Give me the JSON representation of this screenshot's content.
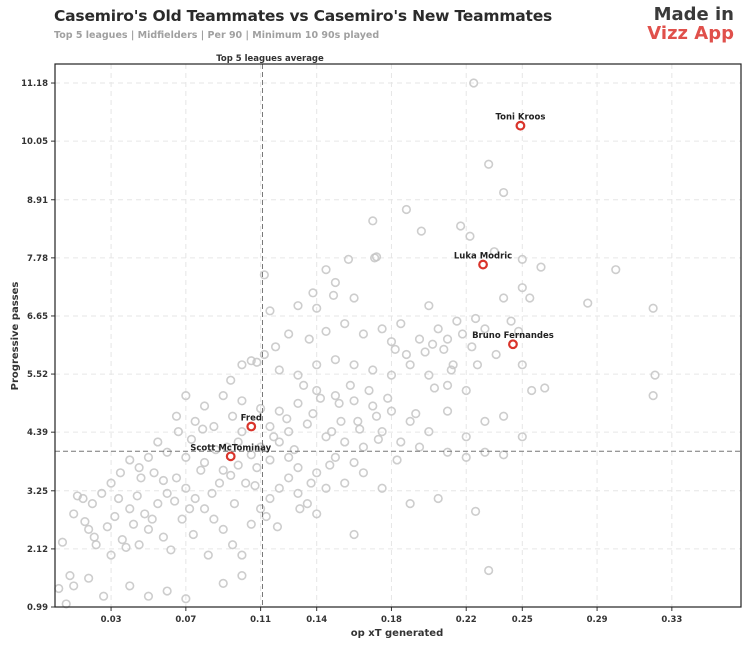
{
  "header": {
    "title": "Casemiro's Old Teammates vs Casemiro's New Teammates",
    "subtitle": "Top 5 leagues | Midfielders | Per 90 | Minimum 10 90s played"
  },
  "brand": {
    "line1": "Made in",
    "line2": "Vizz App",
    "line2_color": "#e0504b"
  },
  "chart_data": {
    "type": "scatter",
    "xlabel": "op xT generated",
    "ylabel": "Progressive passes",
    "xlim": [
      0.0,
      0.367
    ],
    "ylim": [
      0.99,
      11.55
    ],
    "x_ticks": [
      0.03,
      0.07,
      0.11,
      0.14,
      0.18,
      0.22,
      0.25,
      0.29,
      0.33
    ],
    "y_ticks": [
      0.99,
      2.12,
      3.25,
      4.39,
      5.52,
      6.65,
      7.78,
      8.91,
      10.05,
      11.18
    ],
    "grid": true,
    "reference_lines": {
      "x": 0.111,
      "y": 4.02,
      "x_label": "Top 5 leagues average"
    },
    "highlight_color": "#d9342b",
    "background_color": "#c4c4c4",
    "highlighted": [
      {
        "name": "Toni Kroos",
        "x": 0.249,
        "y": 10.35
      },
      {
        "name": "Luka Modric",
        "x": 0.229,
        "y": 7.65
      },
      {
        "name": "Bruno Fernandes",
        "x": 0.245,
        "y": 6.1
      },
      {
        "name": "Fred",
        "x": 0.105,
        "y": 4.5
      },
      {
        "name": "Scott McTominay",
        "x": 0.094,
        "y": 3.92
      }
    ],
    "others": [
      [
        0.224,
        11.18
      ],
      [
        0.232,
        9.6
      ],
      [
        0.24,
        9.05
      ],
      [
        0.17,
        8.5
      ],
      [
        0.188,
        8.72
      ],
      [
        0.196,
        8.3
      ],
      [
        0.217,
        8.4
      ],
      [
        0.222,
        8.2
      ],
      [
        0.235,
        7.9
      ],
      [
        0.25,
        7.75
      ],
      [
        0.26,
        7.6
      ],
      [
        0.3,
        7.55
      ],
      [
        0.32,
        6.8
      ],
      [
        0.285,
        6.9
      ],
      [
        0.24,
        7.0
      ],
      [
        0.254,
        7.0
      ],
      [
        0.25,
        7.2
      ],
      [
        0.171,
        7.78
      ],
      [
        0.172,
        7.8
      ],
      [
        0.157,
        7.75
      ],
      [
        0.145,
        7.55
      ],
      [
        0.15,
        7.3
      ],
      [
        0.138,
        7.1
      ],
      [
        0.149,
        7.05
      ],
      [
        0.16,
        7.0
      ],
      [
        0.14,
        6.8
      ],
      [
        0.13,
        6.85
      ],
      [
        0.115,
        6.75
      ],
      [
        0.2,
        6.85
      ],
      [
        0.215,
        6.55
      ],
      [
        0.225,
        6.6
      ],
      [
        0.23,
        6.4
      ],
      [
        0.205,
        6.4
      ],
      [
        0.195,
        6.2
      ],
      [
        0.21,
        6.2
      ],
      [
        0.18,
        6.15
      ],
      [
        0.165,
        6.3
      ],
      [
        0.175,
        6.4
      ],
      [
        0.185,
        6.5
      ],
      [
        0.155,
        6.5
      ],
      [
        0.145,
        6.35
      ],
      [
        0.136,
        6.2
      ],
      [
        0.125,
        6.3
      ],
      [
        0.118,
        6.05
      ],
      [
        0.112,
        5.9
      ],
      [
        0.105,
        5.78
      ],
      [
        0.108,
        5.75
      ],
      [
        0.1,
        5.7
      ],
      [
        0.094,
        5.4
      ],
      [
        0.12,
        5.6
      ],
      [
        0.13,
        5.5
      ],
      [
        0.14,
        5.7
      ],
      [
        0.15,
        5.8
      ],
      [
        0.16,
        5.7
      ],
      [
        0.17,
        5.6
      ],
      [
        0.18,
        5.5
      ],
      [
        0.19,
        5.7
      ],
      [
        0.2,
        5.5
      ],
      [
        0.21,
        5.3
      ],
      [
        0.22,
        5.2
      ],
      [
        0.236,
        5.9
      ],
      [
        0.25,
        5.7
      ],
      [
        0.255,
        5.2
      ],
      [
        0.262,
        5.25
      ],
      [
        0.32,
        5.1
      ],
      [
        0.321,
        5.5
      ],
      [
        0.25,
        4.3
      ],
      [
        0.24,
        4.7
      ],
      [
        0.23,
        4.6
      ],
      [
        0.22,
        4.3
      ],
      [
        0.21,
        4.8
      ],
      [
        0.2,
        4.4
      ],
      [
        0.19,
        4.6
      ],
      [
        0.18,
        4.8
      ],
      [
        0.17,
        4.9
      ],
      [
        0.16,
        5.0
      ],
      [
        0.15,
        5.1
      ],
      [
        0.14,
        5.2
      ],
      [
        0.13,
        4.95
      ],
      [
        0.12,
        4.8
      ],
      [
        0.11,
        4.85
      ],
      [
        0.1,
        5.0
      ],
      [
        0.09,
        5.1
      ],
      [
        0.08,
        4.9
      ],
      [
        0.07,
        5.1
      ],
      [
        0.065,
        4.7
      ],
      [
        0.075,
        4.6
      ],
      [
        0.085,
        4.5
      ],
      [
        0.095,
        4.7
      ],
      [
        0.1,
        4.4
      ],
      [
        0.115,
        4.5
      ],
      [
        0.125,
        4.4
      ],
      [
        0.135,
        4.55
      ],
      [
        0.145,
        4.3
      ],
      [
        0.155,
        4.2
      ],
      [
        0.165,
        4.1
      ],
      [
        0.175,
        4.4
      ],
      [
        0.185,
        4.2
      ],
      [
        0.195,
        4.1
      ],
      [
        0.21,
        4.0
      ],
      [
        0.23,
        4.0
      ],
      [
        0.22,
        3.9
      ],
      [
        0.24,
        3.95
      ],
      [
        0.16,
        3.8
      ],
      [
        0.15,
        3.9
      ],
      [
        0.14,
        3.6
      ],
      [
        0.13,
        3.7
      ],
      [
        0.125,
        3.9
      ],
      [
        0.115,
        3.85
      ],
      [
        0.105,
        3.95
      ],
      [
        0.098,
        3.75
      ],
      [
        0.09,
        3.65
      ],
      [
        0.08,
        3.8
      ],
      [
        0.07,
        3.9
      ],
      [
        0.06,
        4.0
      ],
      [
        0.055,
        4.2
      ],
      [
        0.05,
        3.9
      ],
      [
        0.045,
        3.7
      ],
      [
        0.04,
        3.85
      ],
      [
        0.035,
        3.6
      ],
      [
        0.03,
        3.4
      ],
      [
        0.025,
        3.2
      ],
      [
        0.02,
        3.0
      ],
      [
        0.015,
        3.1
      ],
      [
        0.01,
        2.8
      ],
      [
        0.018,
        2.5
      ],
      [
        0.022,
        2.2
      ],
      [
        0.03,
        2.0
      ],
      [
        0.036,
        2.3
      ],
      [
        0.042,
        2.6
      ],
      [
        0.048,
        2.8
      ],
      [
        0.055,
        3.0
      ],
      [
        0.06,
        3.2
      ],
      [
        0.065,
        3.5
      ],
      [
        0.07,
        3.3
      ],
      [
        0.075,
        3.1
      ],
      [
        0.08,
        2.9
      ],
      [
        0.085,
        2.7
      ],
      [
        0.09,
        2.5
      ],
      [
        0.095,
        2.2
      ],
      [
        0.1,
        2.0
      ],
      [
        0.105,
        2.6
      ],
      [
        0.11,
        2.9
      ],
      [
        0.115,
        3.1
      ],
      [
        0.12,
        3.3
      ],
      [
        0.125,
        3.5
      ],
      [
        0.13,
        3.2
      ],
      [
        0.135,
        3.0
      ],
      [
        0.14,
        2.8
      ],
      [
        0.145,
        3.3
      ],
      [
        0.155,
        3.4
      ],
      [
        0.165,
        3.6
      ],
      [
        0.175,
        3.3
      ],
      [
        0.19,
        3.0
      ],
      [
        0.205,
        3.1
      ],
      [
        0.225,
        2.85
      ],
      [
        0.232,
        1.7
      ],
      [
        0.16,
        2.4
      ],
      [
        0.01,
        1.4
      ],
      [
        0.018,
        1.55
      ],
      [
        0.008,
        1.6
      ],
      [
        0.004,
        2.25
      ],
      [
        0.002,
        1.35
      ],
      [
        0.006,
        1.05
      ],
      [
        0.026,
        1.2
      ],
      [
        0.04,
        1.4
      ],
      [
        0.05,
        1.2
      ],
      [
        0.06,
        1.3
      ],
      [
        0.07,
        1.15
      ],
      [
        0.09,
        1.45
      ],
      [
        0.1,
        1.6
      ],
      [
        0.04,
        2.9
      ],
      [
        0.045,
        2.2
      ],
      [
        0.05,
        2.5
      ],
      [
        0.062,
        2.1
      ],
      [
        0.068,
        2.7
      ],
      [
        0.074,
        2.4
      ],
      [
        0.082,
        2.0
      ],
      [
        0.088,
        3.4
      ],
      [
        0.096,
        3.0
      ],
      [
        0.102,
        3.4
      ],
      [
        0.108,
        3.7
      ],
      [
        0.112,
        7.45
      ],
      [
        0.12,
        4.2
      ],
      [
        0.128,
        4.05
      ],
      [
        0.133,
        5.3
      ],
      [
        0.138,
        4.75
      ],
      [
        0.142,
        5.05
      ],
      [
        0.148,
        4.4
      ],
      [
        0.152,
        4.95
      ],
      [
        0.158,
        5.3
      ],
      [
        0.162,
        4.6
      ],
      [
        0.168,
        5.2
      ],
      [
        0.172,
        4.7
      ],
      [
        0.178,
        5.05
      ],
      [
        0.182,
        6.0
      ],
      [
        0.188,
        5.9
      ],
      [
        0.198,
        5.95
      ],
      [
        0.202,
        6.1
      ],
      [
        0.208,
        6.0
      ],
      [
        0.212,
        5.6
      ],
      [
        0.218,
        6.3
      ],
      [
        0.226,
        5.7
      ],
      [
        0.053,
        3.6
      ],
      [
        0.058,
        3.45
      ],
      [
        0.064,
        3.05
      ],
      [
        0.072,
        2.9
      ],
      [
        0.078,
        3.65
      ],
      [
        0.084,
        3.2
      ],
      [
        0.092,
        4.1
      ],
      [
        0.098,
        4.2
      ],
      [
        0.11,
        4.1
      ],
      [
        0.117,
        4.3
      ],
      [
        0.124,
        4.65
      ],
      [
        0.032,
        2.75
      ],
      [
        0.028,
        2.55
      ],
      [
        0.038,
        2.15
      ],
      [
        0.044,
        3.15
      ],
      [
        0.012,
        3.15
      ],
      [
        0.016,
        2.65
      ],
      [
        0.021,
        2.35
      ],
      [
        0.034,
        3.1
      ],
      [
        0.046,
        3.5
      ],
      [
        0.052,
        2.7
      ],
      [
        0.058,
        2.35
      ],
      [
        0.066,
        4.4
      ],
      [
        0.073,
        4.25
      ],
      [
        0.079,
        4.45
      ],
      [
        0.086,
        4.05
      ],
      [
        0.094,
        3.55
      ],
      [
        0.107,
        3.35
      ],
      [
        0.113,
        2.75
      ],
      [
        0.119,
        2.55
      ],
      [
        0.131,
        2.9
      ],
      [
        0.137,
        3.4
      ],
      [
        0.147,
        3.75
      ],
      [
        0.153,
        4.6
      ],
      [
        0.163,
        4.45
      ],
      [
        0.173,
        4.25
      ],
      [
        0.183,
        3.85
      ],
      [
        0.193,
        4.75
      ],
      [
        0.203,
        5.25
      ],
      [
        0.213,
        5.7
      ],
      [
        0.223,
        6.05
      ],
      [
        0.244,
        6.55
      ],
      [
        0.248,
        6.35
      ]
    ]
  }
}
